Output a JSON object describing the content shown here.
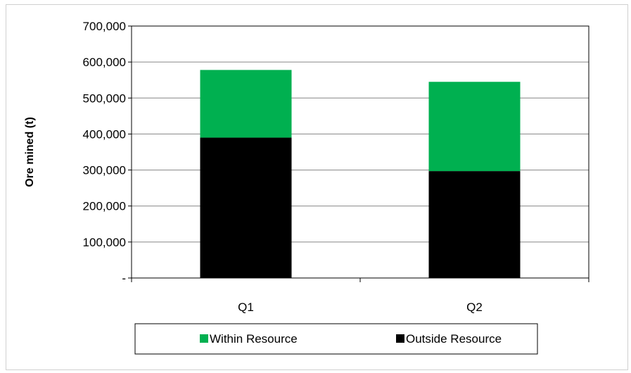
{
  "chart_data": {
    "type": "bar",
    "stacked": true,
    "categories": [
      "Q1",
      "Q2"
    ],
    "series": [
      {
        "name": "Outside Resource",
        "color": "#000000",
        "values": [
          390000,
          297000
        ]
      },
      {
        "name": "Within Resource",
        "color": "#00b050",
        "values": [
          188000,
          248000
        ]
      }
    ],
    "ylabel": "Ore mined (t)",
    "ylim": [
      0,
      700000
    ],
    "yticks": [
      0,
      100000,
      200000,
      300000,
      400000,
      500000,
      600000,
      700000
    ],
    "ytick_labels": [
      "-",
      "100,000",
      "200,000",
      "300,000",
      "400,000",
      "500,000",
      "600,000",
      "700,000"
    ],
    "grid": true,
    "legend_position": "bottom",
    "legend_order": [
      "Within Resource",
      "Outside Resource"
    ]
  }
}
